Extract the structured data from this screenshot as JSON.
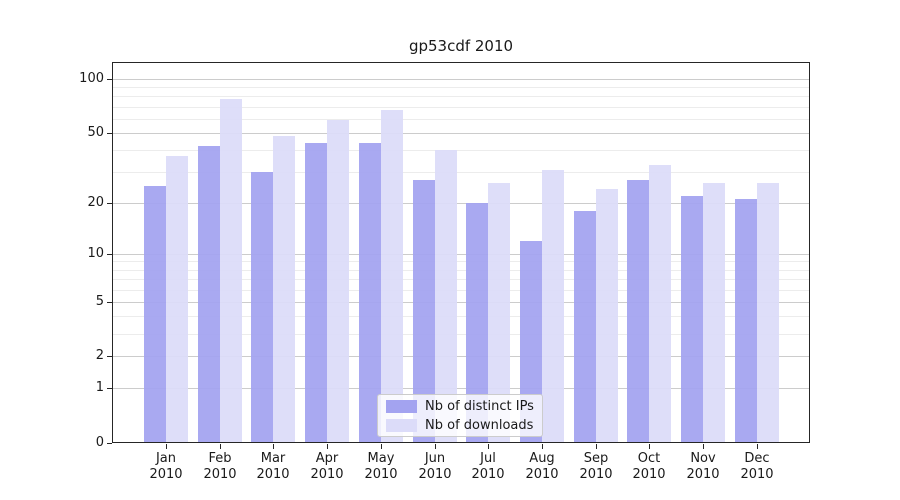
{
  "title": "gp53cdf 2010",
  "colors": {
    "bar_distinct_ips": "#a3a3f0",
    "bar_downloads": "#dcdcf9",
    "grid_major": "#cccccc",
    "grid_minor": "#ececec",
    "spine": "#262626",
    "text": "#1a1a1a",
    "legend_border": "#cccccc"
  },
  "chart_data": {
    "type": "bar",
    "title": "gp53cdf 2010",
    "x_year": "2010",
    "categories": [
      "Jan",
      "Feb",
      "Mar",
      "Apr",
      "May",
      "Jun",
      "Jul",
      "Aug",
      "Sep",
      "Oct",
      "Nov",
      "Dec"
    ],
    "series": [
      {
        "name": "Nb of distinct IPs",
        "color": "#a3a3f0",
        "values": [
          25,
          42,
          30,
          44,
          44,
          27,
          20,
          12,
          18,
          27,
          22,
          21
        ]
      },
      {
        "name": "Nb of downloads",
        "color": "#dcdcf9",
        "values": [
          37,
          77,
          48,
          59,
          67,
          40,
          26,
          31,
          24,
          33,
          26,
          26
        ]
      }
    ],
    "y_scale": "symlog (log1p)",
    "y_ticks": [
      100,
      50,
      20,
      10,
      5,
      2,
      1,
      0
    ],
    "y_minor_ticks": [
      3,
      4,
      6,
      7,
      8,
      9,
      30,
      40,
      60,
      70,
      80,
      90
    ],
    "ylim": [
      0,
      125
    ],
    "grid": true,
    "legend_position": "lower center"
  }
}
